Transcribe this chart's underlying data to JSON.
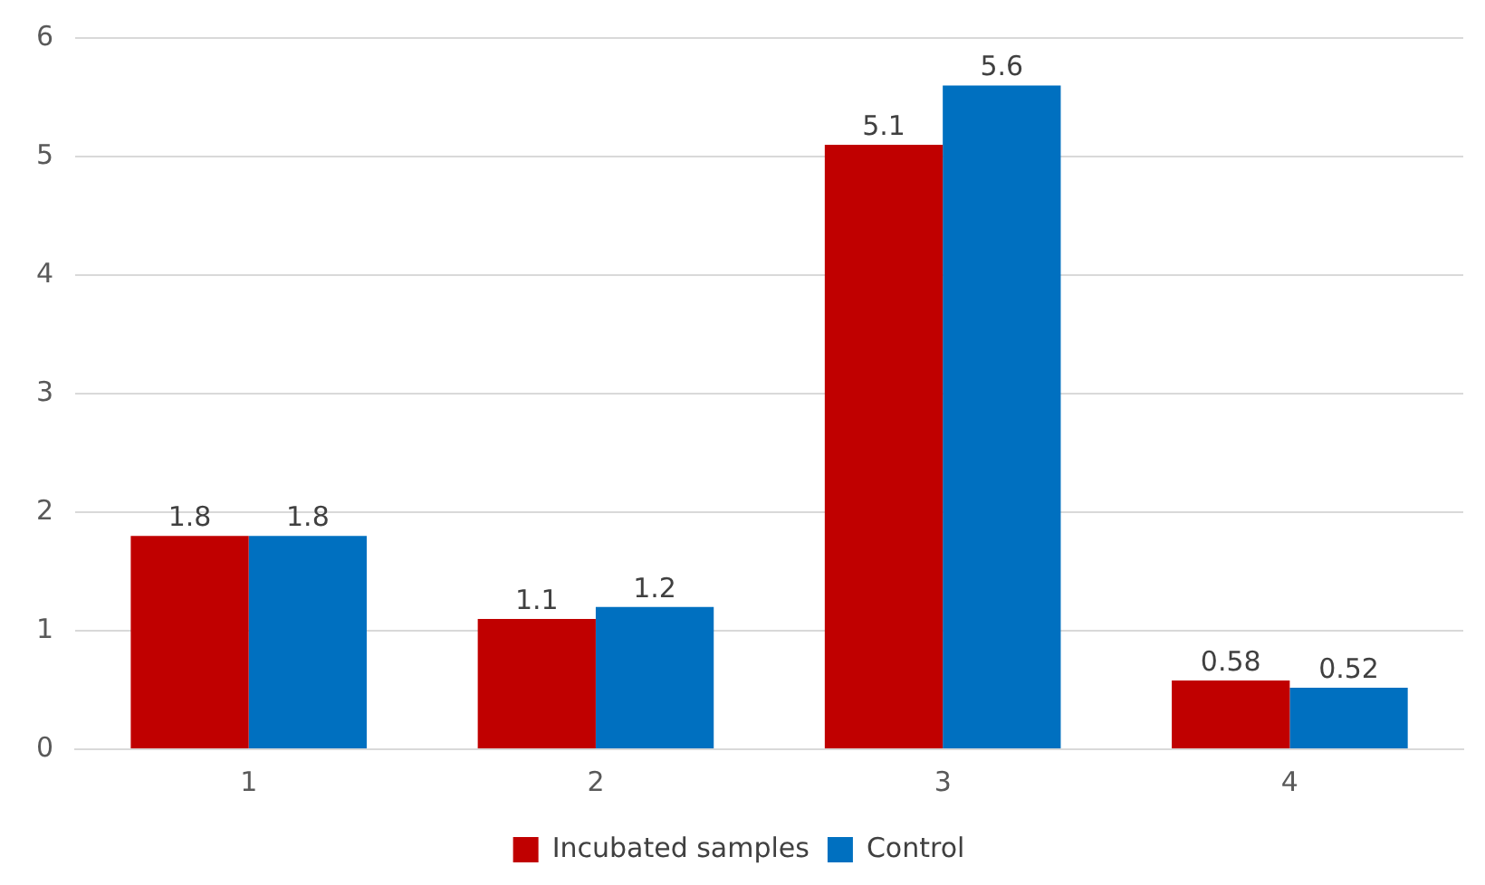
{
  "chart_data": {
    "type": "bar",
    "categories": [
      "1",
      "2",
      "3",
      "4"
    ],
    "series": [
      {
        "name": "Incubated samples",
        "color": "#c00000",
        "values": [
          1.8,
          1.1,
          5.1,
          0.58
        ]
      },
      {
        "name": "Control",
        "color": "#0070c0",
        "values": [
          1.8,
          1.2,
          5.6,
          0.52
        ]
      }
    ],
    "ylim": [
      0,
      6
    ],
    "yticks": [
      0,
      1,
      2,
      3,
      4,
      5,
      6
    ],
    "grid": "y",
    "legend": "bottom",
    "data_labels": true
  }
}
